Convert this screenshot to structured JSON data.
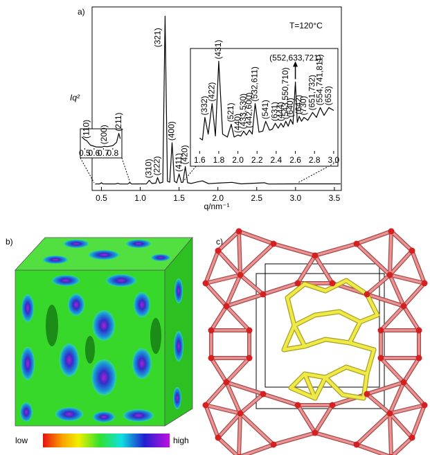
{
  "panel_labels": [
    "a)",
    "b)",
    "c)"
  ],
  "chart_data": [
    {
      "type": "line",
      "x_label": "q/nm⁻¹",
      "y_label": "Iq²",
      "note": "T=120°C",
      "color": "#000000",
      "x": [
        0.42,
        0.48,
        0.5,
        0.52,
        0.68,
        0.71,
        0.74,
        0.84,
        0.865,
        0.89,
        1.08,
        1.116,
        1.15,
        1.2,
        1.223,
        1.25,
        1.29,
        1.32,
        1.35,
        1.38,
        1.41,
        1.44,
        1.47,
        1.5,
        1.53,
        1.55,
        1.58,
        1.61,
        1.655,
        1.73,
        1.8,
        1.88,
        2.0,
        2.18,
        2.3,
        2.6,
        2.65,
        3.0,
        3.58
      ],
      "values": [
        3.5,
        3.6,
        4.2,
        3.6,
        3.5,
        3.9,
        3.5,
        3.5,
        4.3,
        3.5,
        3.6,
        5.5,
        3.8,
        4,
        7,
        4,
        4.5,
        95,
        5,
        4.5,
        26,
        5,
        4.2,
        9,
        4.3,
        4.5,
        13,
        4.2,
        3.8,
        4.6,
        5.2,
        3.7,
        4.0,
        4.4,
        3.6,
        4.2,
        3.5,
        3.6,
        3.6
      ],
      "xlim": [
        0.38,
        3.59
      ],
      "ylim": [
        0,
        100
      ],
      "xticks": [
        0.5,
        {
          "value": 1,
          "label": "1.0"
        },
        1.5,
        {
          "value": 2,
          "label": "2.0"
        },
        2.5,
        {
          "value": 3,
          "label": "3.0"
        },
        3.5
      ],
      "peak_labels": [
        {
          "text": "(310)",
          "x": 1.116
        },
        {
          "text": "(222)",
          "x": 1.223
        },
        {
          "text": "(321)",
          "x": 1.32
        },
        {
          "text": "(400)",
          "x": 1.41
        },
        {
          "text": "(411)",
          "x": 1.5
        },
        {
          "text": "(420)",
          "x": 1.58
        }
      ]
    },
    {
      "type": "line",
      "color": "#000000",
      "x": [
        1.6,
        1.63,
        1.655,
        1.69,
        1.73,
        1.765,
        1.8,
        1.84,
        1.89,
        1.93,
        1.96,
        2.0,
        2.03,
        2.06,
        2.09,
        2.12,
        2.15,
        2.18,
        2.22,
        2.26,
        2.29,
        2.33,
        2.36,
        2.39,
        2.42,
        2.45,
        2.475,
        2.5,
        2.525,
        2.55,
        2.575,
        2.6,
        2.62,
        2.64,
        2.665,
        2.69,
        2.73,
        2.78,
        2.82,
        2.86,
        2.9,
        2.95,
        3.0
      ],
      "values": [
        16,
        14,
        37,
        20,
        51,
        18,
        94,
        20,
        17,
        30,
        17,
        19,
        18,
        23,
        19,
        24,
        20,
        51,
        22,
        23,
        33,
        24,
        25,
        31,
        26,
        31,
        27,
        33,
        28,
        35,
        30,
        73,
        32,
        38,
        33,
        37,
        34,
        42,
        37,
        47,
        39,
        47,
        44
      ],
      "xlim": [
        1.54,
        3.03
      ],
      "ylim": [
        0,
        100
      ],
      "xticks": [
        1.6,
        1.8,
        {
          "value": 2,
          "label": "2.0"
        },
        2.2,
        2.4,
        2.6,
        2.8,
        {
          "value": 3,
          "label": "3.0"
        }
      ],
      "peak_labels": [
        {
          "text": "(332)",
          "x": 1.655
        },
        {
          "text": "(422)",
          "x": 1.73
        },
        {
          "text": "(431)",
          "x": 1.8
        },
        {
          "text": "(521)",
          "x": 1.93
        },
        {
          "text": "(440)",
          "x": 2.0
        },
        {
          "text": "(433,530)",
          "x": 2.06
        },
        {
          "text": "(442,600)",
          "x": 2.12
        },
        {
          "text": "(532,611)",
          "x": 2.18
        },
        {
          "text": "(541)",
          "x": 2.29
        },
        {
          "text": "(631)",
          "x": 2.39
        },
        {
          "text": "(444)",
          "x": 2.45
        },
        {
          "text": "(543,550,710)",
          "x": 2.5
        },
        {
          "text": "(640)",
          "x": 2.55
        },
        {
          "text": "(552,633,721)",
          "x": 2.6,
          "arrow": true
        },
        {
          "text": "(642)",
          "x": 2.64
        },
        {
          "text": "(730)",
          "x": 2.69
        },
        {
          "text": "(651,732)",
          "x": 2.78
        },
        {
          "text": "(554,741,811)",
          "x": 2.86
        },
        {
          "text": "(653)",
          "x": 2.95
        }
      ]
    },
    {
      "type": "line",
      "color": "#000000",
      "x": [
        0.47,
        0.5,
        0.52,
        0.56,
        0.62,
        0.68,
        0.71,
        0.74,
        0.8,
        0.84,
        0.865,
        0.88
      ],
      "values": [
        70,
        55,
        50,
        25,
        15,
        14,
        18,
        16,
        22,
        40,
        90,
        60
      ],
      "xlim": [
        0.46,
        0.89
      ],
      "ylim": [
        0,
        100
      ],
      "xticks": [
        0.5,
        0.6,
        0.7,
        0.8
      ],
      "peak_labels": [
        {
          "text": "(110)",
          "x": 0.52
        },
        {
          "text": "(200)",
          "x": 0.71
        },
        {
          "text": "(211)",
          "x": 0.865
        }
      ]
    }
  ],
  "colorbar": {
    "low": "low",
    "high": "high"
  }
}
